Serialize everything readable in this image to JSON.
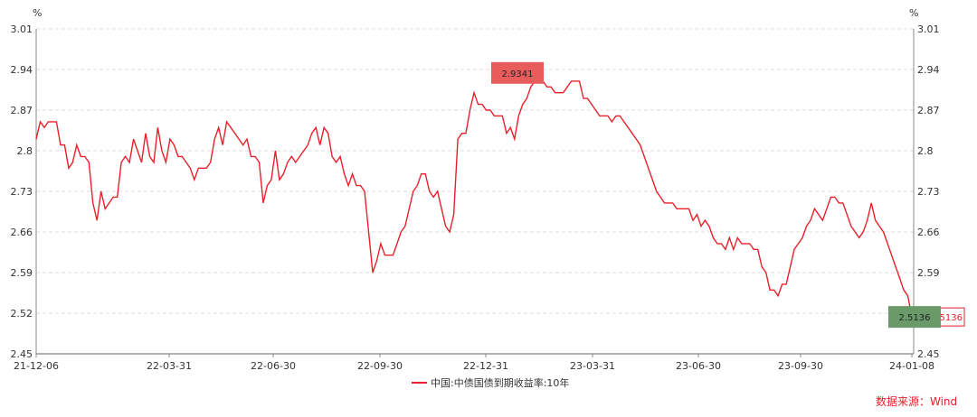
{
  "chart_data": {
    "type": "line",
    "ylim": [
      2.45,
      3.01
    ],
    "y_ticks": [
      "2.45",
      "2.52",
      "2.59",
      "2.66",
      "2.73",
      "2.8",
      "2.87",
      "2.94",
      "3.01"
    ],
    "y_unit": "%",
    "x_tick_labels": [
      "21-12-06",
      "22-03-31",
      "22-06-30",
      "22-09-30",
      "22-12-31",
      "23-03-31",
      "23-06-30",
      "23-09-30",
      "24-01-08"
    ],
    "grid": "horizontal-dashed",
    "legend_position": "bottom-center",
    "series": [
      {
        "name": "中国:中债国债到期收益率:10年",
        "color": "#e8202a",
        "values": [
          2.82,
          2.85,
          2.84,
          2.85,
          2.85,
          2.85,
          2.81,
          2.81,
          2.77,
          2.78,
          2.81,
          2.79,
          2.79,
          2.78,
          2.71,
          2.68,
          2.73,
          2.7,
          2.71,
          2.72,
          2.72,
          2.78,
          2.79,
          2.78,
          2.82,
          2.8,
          2.78,
          2.83,
          2.79,
          2.78,
          2.84,
          2.8,
          2.78,
          2.82,
          2.81,
          2.79,
          2.79,
          2.78,
          2.77,
          2.75,
          2.77,
          2.77,
          2.77,
          2.78,
          2.82,
          2.84,
          2.81,
          2.85,
          2.84,
          2.83,
          2.82,
          2.81,
          2.82,
          2.79,
          2.79,
          2.78,
          2.71,
          2.74,
          2.75,
          2.8,
          2.75,
          2.76,
          2.78,
          2.79,
          2.78,
          2.79,
          2.8,
          2.81,
          2.83,
          2.84,
          2.81,
          2.84,
          2.83,
          2.79,
          2.78,
          2.79,
          2.76,
          2.74,
          2.76,
          2.74,
          2.74,
          2.73,
          2.66,
          2.59,
          2.61,
          2.64,
          2.62,
          2.62,
          2.62,
          2.64,
          2.66,
          2.67,
          2.7,
          2.73,
          2.74,
          2.76,
          2.76,
          2.73,
          2.72,
          2.73,
          2.7,
          2.67,
          2.66,
          2.69,
          2.82,
          2.83,
          2.83,
          2.87,
          2.9,
          2.88,
          2.88,
          2.87,
          2.87,
          2.86,
          2.86,
          2.86,
          2.83,
          2.84,
          2.82,
          2.86,
          2.88,
          2.89,
          2.91,
          2.92,
          2.93,
          2.92,
          2.91,
          2.91,
          2.9,
          2.9,
          2.9,
          2.91,
          2.92,
          2.92,
          2.92,
          2.89,
          2.89,
          2.88,
          2.87,
          2.86,
          2.86,
          2.86,
          2.85,
          2.86,
          2.86,
          2.85,
          2.84,
          2.83,
          2.82,
          2.81,
          2.79,
          2.77,
          2.75,
          2.73,
          2.72,
          2.71,
          2.71,
          2.71,
          2.7,
          2.7,
          2.7,
          2.7,
          2.68,
          2.69,
          2.67,
          2.68,
          2.67,
          2.65,
          2.64,
          2.64,
          2.63,
          2.65,
          2.63,
          2.65,
          2.64,
          2.64,
          2.64,
          2.63,
          2.63,
          2.6,
          2.59,
          2.56,
          2.56,
          2.55,
          2.57,
          2.57,
          2.6,
          2.63,
          2.64,
          2.65,
          2.67,
          2.68,
          2.7,
          2.69,
          2.68,
          2.7,
          2.72,
          2.72,
          2.71,
          2.71,
          2.69,
          2.67,
          2.66,
          2.65,
          2.66,
          2.68,
          2.71,
          2.68,
          2.67,
          2.66,
          2.64,
          2.62,
          2.6,
          2.58,
          2.56,
          2.55,
          2.5136
        ],
        "last_value": "2.5136",
        "max_value": "2.9341"
      }
    ],
    "source": "数据来源：Wind"
  }
}
